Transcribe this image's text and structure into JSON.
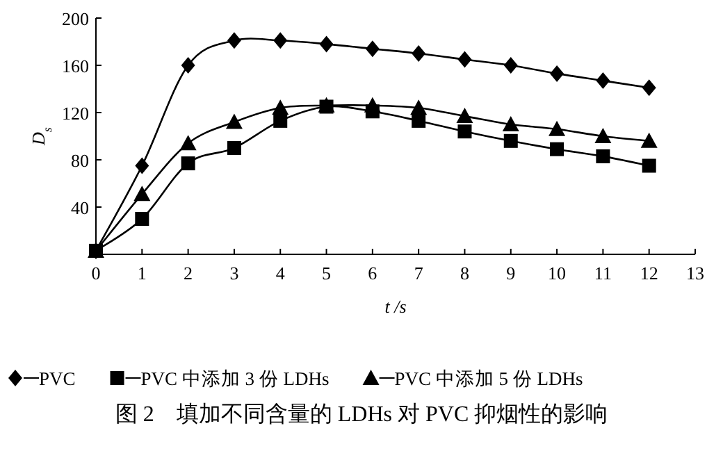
{
  "chart_data": {
    "type": "line",
    "xlabel": "t /s",
    "ylabel": "D$_{s}$",
    "x": [
      0,
      1,
      2,
      3,
      4,
      5,
      6,
      7,
      8,
      9,
      10,
      11,
      12
    ],
    "series": [
      {
        "name": "PVC",
        "color": "#000000",
        "marker": "diamond",
        "values": [
          3,
          75,
          160,
          181,
          181,
          178,
          174,
          170,
          165,
          160,
          153,
          147,
          141
        ]
      },
      {
        "name": "PVC 中添加 3 份 LDHs",
        "color": "#000000",
        "marker": "square",
        "values": [
          3,
          30,
          77,
          90,
          113,
          125,
          121,
          113,
          104,
          96,
          89,
          83,
          75
        ]
      },
      {
        "name": "PVC 中添加 5 份 LDHs",
        "color": "#000000",
        "marker": "triangle",
        "values": [
          3,
          51,
          94,
          112,
          124,
          126,
          126,
          124,
          117,
          110,
          106,
          100,
          96
        ]
      }
    ],
    "xlim": [
      0,
      13
    ],
    "xticks": [
      0,
      1,
      2,
      3,
      4,
      5,
      6,
      7,
      8,
      9,
      10,
      11,
      12,
      13
    ],
    "ylim": [
      0,
      200
    ],
    "yticks": [
      40,
      80,
      120,
      160,
      200
    ],
    "grid": false,
    "legend": "bottom",
    "line_style": "solid",
    "annotations": [
      "图 2　填加不同含量的 LDHs 对 PVC 抑烟性的影响"
    ]
  }
}
